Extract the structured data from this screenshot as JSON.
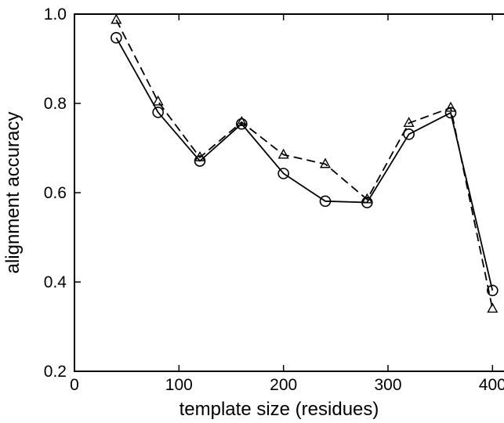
{
  "chart_data": {
    "type": "line",
    "title": "",
    "xlabel": "template size (residues)",
    "ylabel": "alignment accuracy",
    "xlim": [
      0,
      420
    ],
    "ylim": [
      0.2,
      1.0
    ],
    "x_ticks": [
      0,
      100,
      200,
      300,
      400
    ],
    "x_tick_labels": [
      "0",
      "100",
      "200",
      "300",
      "400"
    ],
    "y_ticks": [
      0.2,
      0.4,
      0.6,
      0.8,
      1.0
    ],
    "y_tick_labels": [
      "0.2",
      "0.4",
      "0.6",
      "0.8",
      "1.0"
    ],
    "grid": false,
    "legend": "none",
    "x": [
      40,
      80,
      120,
      160,
      200,
      240,
      280,
      320,
      360,
      400
    ],
    "series": [
      {
        "marker": "circle",
        "line_style": "solid",
        "color": "#000000",
        "values": [
          0.947,
          0.78,
          0.671,
          0.754,
          0.643,
          0.581,
          0.578,
          0.731,
          0.779,
          0.381
        ]
      },
      {
        "marker": "triangle",
        "line_style": "dashed",
        "color": "#000000",
        "values": [
          0.987,
          0.804,
          0.679,
          0.758,
          0.685,
          0.664,
          0.585,
          0.756,
          0.79,
          0.34
        ]
      }
    ]
  }
}
